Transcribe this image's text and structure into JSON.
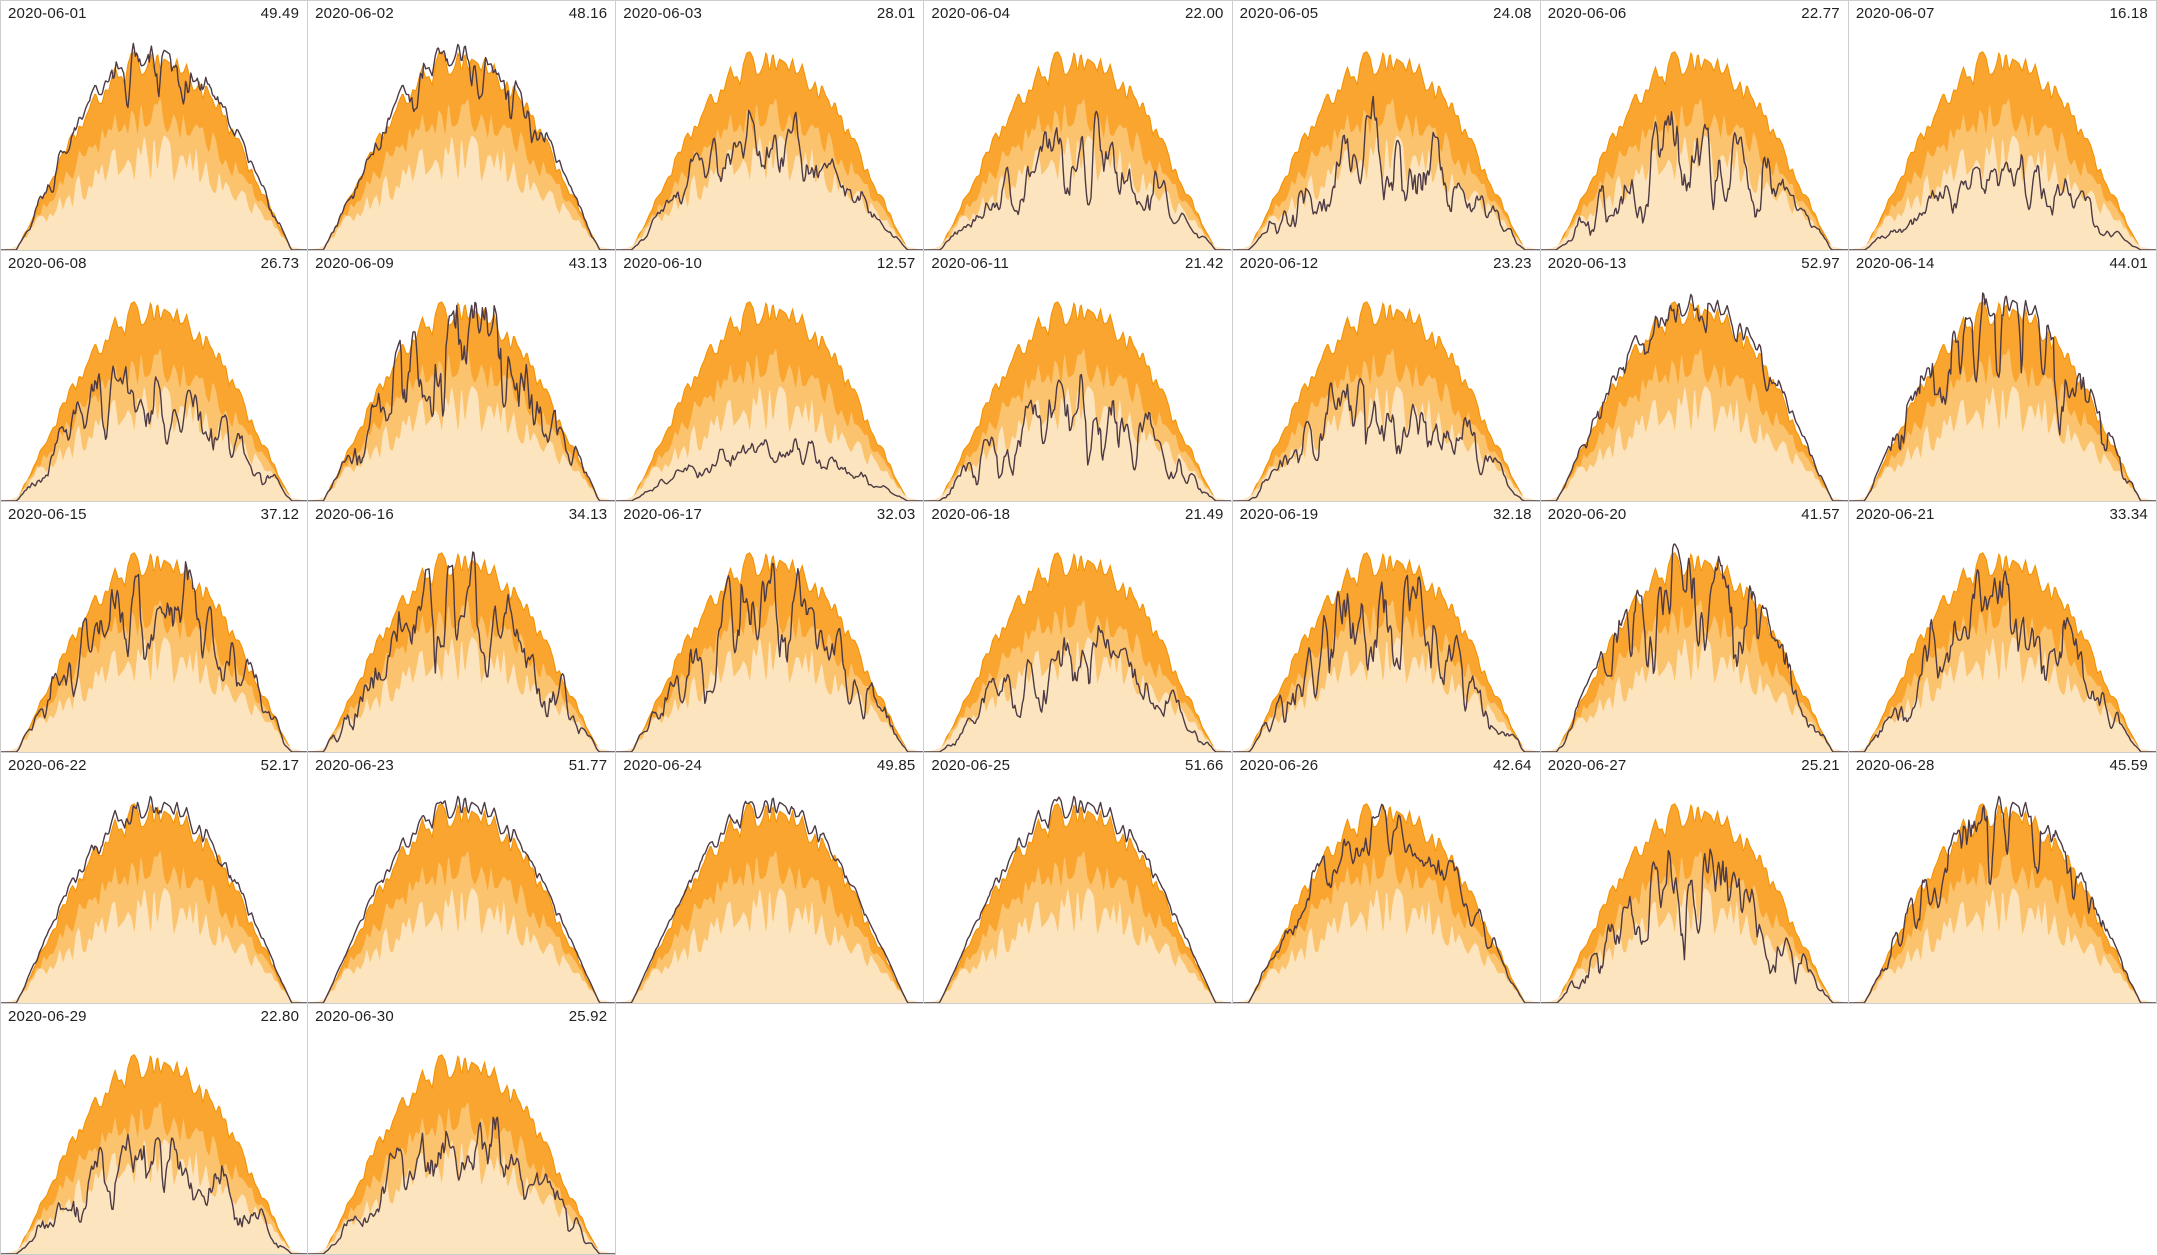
{
  "chart_data": {
    "type": "area",
    "layout": "small-multiples",
    "grid": {
      "columns": 7,
      "rows": 5,
      "panel_count": 30
    },
    "title": "",
    "xlabel": "",
    "ylabel": "",
    "x_axis": {
      "visible": false,
      "range": "one day (sunrise to sunset)"
    },
    "y_axis": {
      "visible": false,
      "range": [
        0,
        1
      ]
    },
    "legend": "none",
    "date_label_position": "top-left",
    "value_label_position": "top-right",
    "bands": [
      {
        "name": "envelope-outer-max",
        "color": "#F9A52F",
        "edge_color": "#F29100",
        "relative_height": 0.88
      },
      {
        "name": "envelope-middle",
        "color": "#FBC36E",
        "relative_height": 0.66
      },
      {
        "name": "envelope-inner-low",
        "color": "#FCE5BE",
        "relative_height": 0.46
      }
    ],
    "line": {
      "name": "daily-production-line",
      "color": "#4D3A44",
      "width": 1.4
    },
    "style": {
      "panel_border_color": "#cdcdcd",
      "label_color": "#212121",
      "background": "#ffffff"
    },
    "panels": [
      {
        "date": "2020-06-01",
        "value": "49.49",
        "variability": 0.3
      },
      {
        "date": "2020-06-02",
        "value": "48.16",
        "variability": 0.3
      },
      {
        "date": "2020-06-03",
        "value": "28.01",
        "variability": 0.35
      },
      {
        "date": "2020-06-04",
        "value": "22.00",
        "variability": 0.55
      },
      {
        "date": "2020-06-05",
        "value": "24.08",
        "variability": 0.6
      },
      {
        "date": "2020-06-06",
        "value": "22.77",
        "variability": 0.65
      },
      {
        "date": "2020-06-07",
        "value": "16.18",
        "variability": 0.45
      },
      {
        "date": "2020-06-08",
        "value": "26.73",
        "variability": 0.5
      },
      {
        "date": "2020-06-09",
        "value": "43.13",
        "variability": 0.55
      },
      {
        "date": "2020-06-10",
        "value": "12.57",
        "variability": 0.3
      },
      {
        "date": "2020-06-11",
        "value": "21.42",
        "variability": 0.6
      },
      {
        "date": "2020-06-12",
        "value": "23.23",
        "variability": 0.6
      },
      {
        "date": "2020-06-13",
        "value": "52.97",
        "variability": 0.25
      },
      {
        "date": "2020-06-14",
        "value": "44.01",
        "variability": 0.6
      },
      {
        "date": "2020-06-15",
        "value": "37.12",
        "variability": 0.5
      },
      {
        "date": "2020-06-16",
        "value": "34.13",
        "variability": 0.6
      },
      {
        "date": "2020-06-17",
        "value": "32.03",
        "variability": 0.55
      },
      {
        "date": "2020-06-18",
        "value": "21.49",
        "variability": 0.55
      },
      {
        "date": "2020-06-19",
        "value": "32.18",
        "variability": 0.6
      },
      {
        "date": "2020-06-20",
        "value": "41.57",
        "variability": 0.55
      },
      {
        "date": "2020-06-21",
        "value": "33.34",
        "variability": 0.55
      },
      {
        "date": "2020-06-22",
        "value": "52.17",
        "variability": 0.15
      },
      {
        "date": "2020-06-23",
        "value": "51.77",
        "variability": 0.05
      },
      {
        "date": "2020-06-24",
        "value": "49.85",
        "variability": 0.05
      },
      {
        "date": "2020-06-25",
        "value": "51.66",
        "variability": 0.05
      },
      {
        "date": "2020-06-26",
        "value": "42.64",
        "variability": 0.25
      },
      {
        "date": "2020-06-27",
        "value": "25.21",
        "variability": 0.6
      },
      {
        "date": "2020-06-28",
        "value": "45.59",
        "variability": 0.45
      },
      {
        "date": "2020-06-29",
        "value": "22.80",
        "variability": 0.55
      },
      {
        "date": "2020-06-30",
        "value": "25.92",
        "variability": 0.5
      }
    ]
  }
}
